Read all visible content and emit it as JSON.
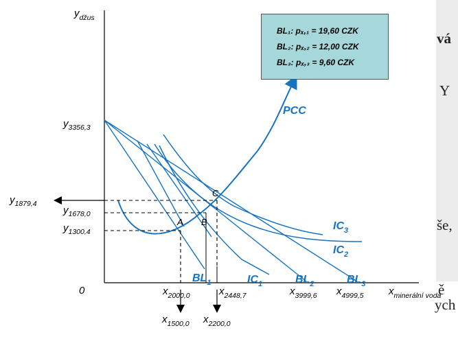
{
  "background_fragments": [
    "vá",
    "Y",
    "še,",
    "ě",
    "ych"
  ],
  "legend": {
    "lines": [
      "BL₁: pₓ,₁ = 19,60 CZK",
      "BL₂: pₓ,₂ = 12,00 CZK",
      "BL₃: pₓ,₃ = 9,60 CZK"
    ]
  },
  "axes": {
    "y_label": "y",
    "y_label_sub": "džus",
    "x_label": "x",
    "x_label_sub": "minerální voda",
    "origin": "0"
  },
  "y_ticks": [
    {
      "base": "y",
      "sub": "3356,3"
    },
    {
      "base": "y",
      "sub": "1879,4"
    },
    {
      "base": "y",
      "sub": "1678,0"
    },
    {
      "base": "y",
      "sub": "1300,4"
    }
  ],
  "x_ticks": [
    {
      "base": "x",
      "sub": "2000,0"
    },
    {
      "base": "x",
      "sub": "2448,7"
    },
    {
      "base": "x",
      "sub": "3999,6"
    },
    {
      "base": "x",
      "sub": "4999,5"
    },
    {
      "base": "x",
      "sub": "1500,0"
    },
    {
      "base": "x",
      "sub": "2200,0"
    }
  ],
  "points": [
    "A",
    "B",
    "C"
  ],
  "curve_labels": {
    "pcc": "PCC",
    "ic1": {
      "base": "IC",
      "sub": "1"
    },
    "ic2": {
      "base": "IC",
      "sub": "2"
    },
    "ic3": {
      "base": "IC",
      "sub": "3"
    },
    "bl1": {
      "base": "BL",
      "sub": "1"
    },
    "bl2": {
      "base": "BL",
      "sub": "2"
    },
    "bl3": {
      "base": "BL",
      "sub": "3"
    }
  },
  "colors": {
    "curve": "#1673c0",
    "legend_bg": "#a6d8db",
    "axis": "#000000"
  }
}
